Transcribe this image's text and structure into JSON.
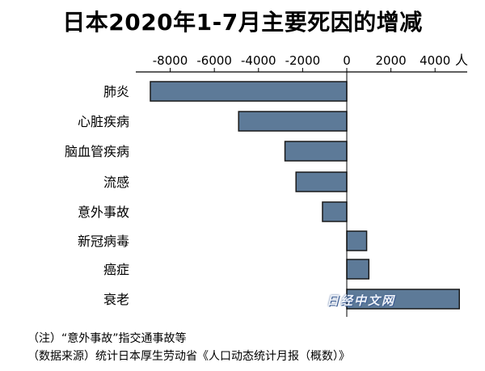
{
  "title": "日本2020年1-7月主要死因的增减",
  "chart_data": {
    "type": "bar",
    "orientation": "horizontal",
    "title": "日本2020年1-7月主要死因的增减",
    "unit": "人",
    "categories": [
      "肺炎",
      "心脏疾病",
      "脑血管疾病",
      "流感",
      "意外事故",
      "新冠病毒",
      "癌症",
      "衰老"
    ],
    "values": [
      -8900,
      -4900,
      -2800,
      -2300,
      -1100,
      900,
      1000,
      5100
    ],
    "xlim": [
      -9600,
      5200
    ],
    "xticks": [
      -8000,
      -6000,
      -4000,
      -2000,
      0,
      2000,
      4000
    ],
    "xtick_labels": [
      "-8000",
      "-6000",
      "-4000",
      "-2000",
      "0",
      "2000",
      "4000"
    ],
    "axis_position": "top",
    "grid": false,
    "bar_color": "#5d7a98",
    "bar_edge_color": "#1a1a1a"
  },
  "notes": {
    "note1": "（注）“意外事故”指交通事故等",
    "note2": "（数据来源）统计日本厚生劳动省《人口动态统计月报（概数）》"
  },
  "watermark": "日经中文网"
}
